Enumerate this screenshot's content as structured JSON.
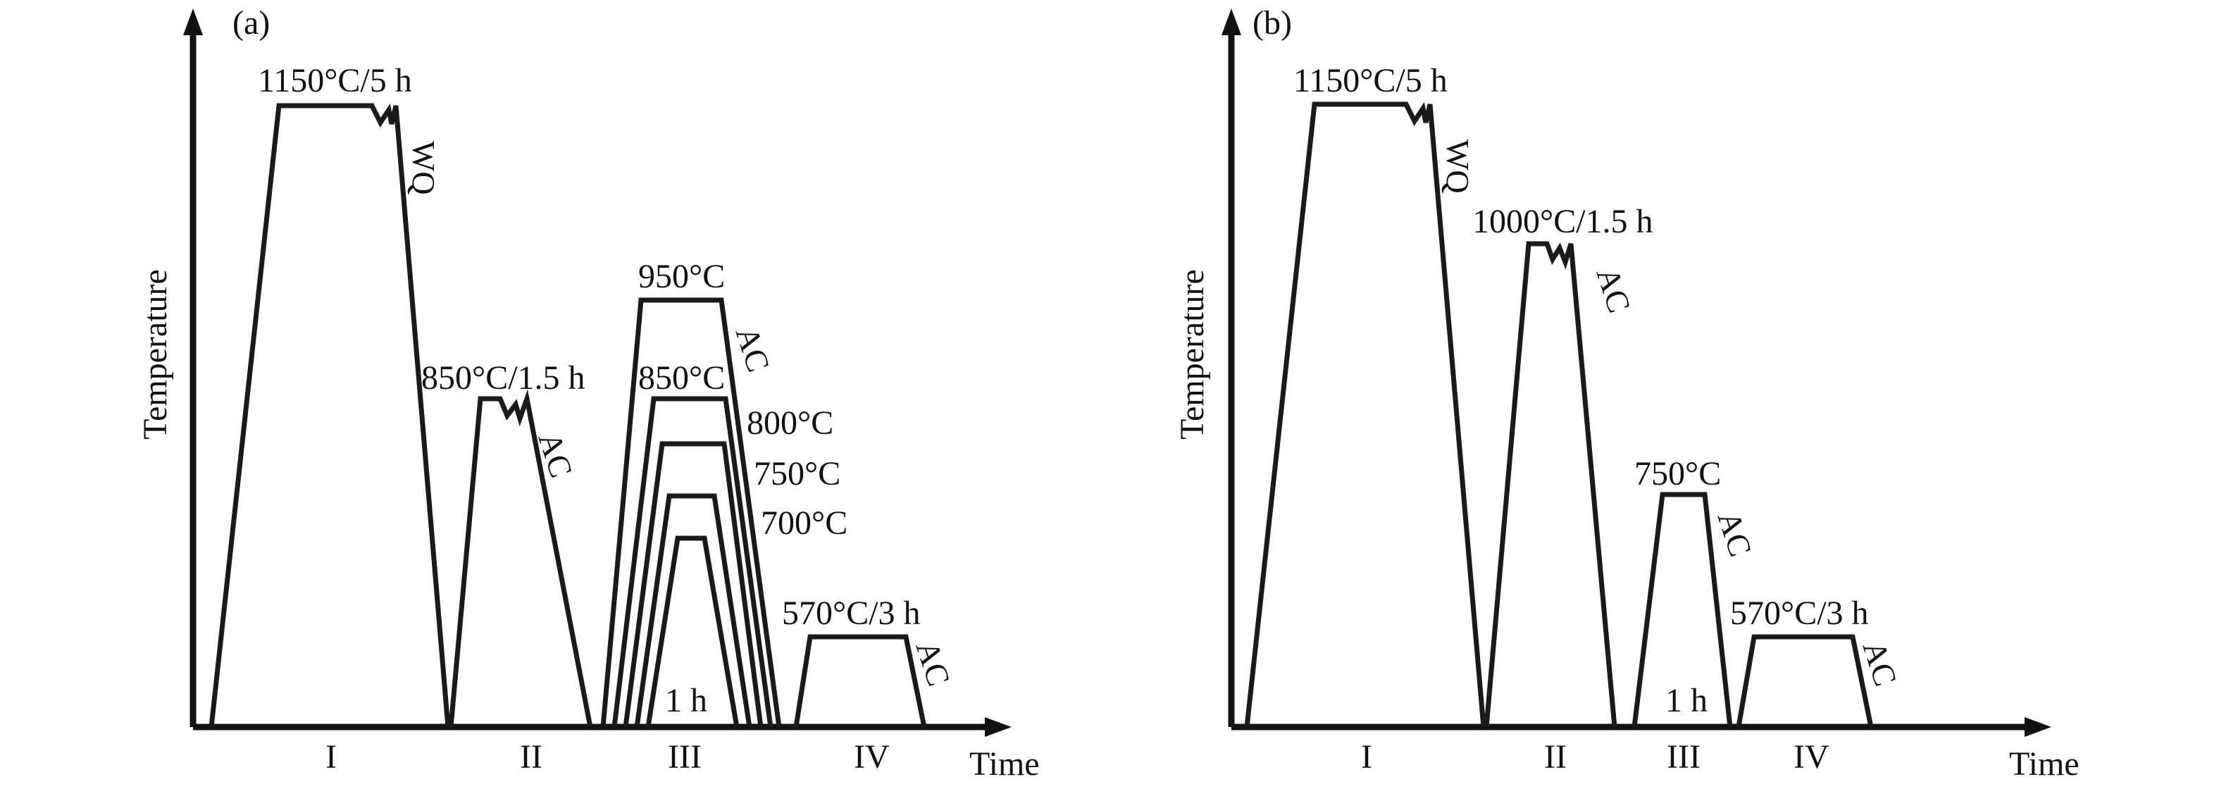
{
  "panel_a": {
    "panel_label": "(a)",
    "y_axis_label": "Temperature",
    "x_axis_label": "Time",
    "stages": [
      "I",
      "II",
      "III",
      "IV"
    ],
    "step1": {
      "label": "1150°C/5 h",
      "cool": "WQ"
    },
    "step2": {
      "label": "850°C/1.5 h",
      "cool": "AC"
    },
    "step3": {
      "temps": [
        "950°C",
        "850°C",
        "800°C",
        "750°C",
        "700°C"
      ],
      "cool": "AC",
      "hold": "1 h"
    },
    "step4": {
      "label": "570°C/3 h",
      "cool": "AC"
    }
  },
  "panel_b": {
    "panel_label": "(b)",
    "y_axis_label": "Temperature",
    "x_axis_label": "Time",
    "stages": [
      "I",
      "II",
      "III",
      "IV"
    ],
    "step1": {
      "label": "1150°C/5 h",
      "cool": "WQ"
    },
    "step2": {
      "label": "1000°C/1.5 h",
      "cool": "AC"
    },
    "step3": {
      "label": "750°C",
      "cool": "AC",
      "hold": "1 h"
    },
    "step4": {
      "label": "570°C/3 h",
      "cool": "AC"
    }
  }
}
